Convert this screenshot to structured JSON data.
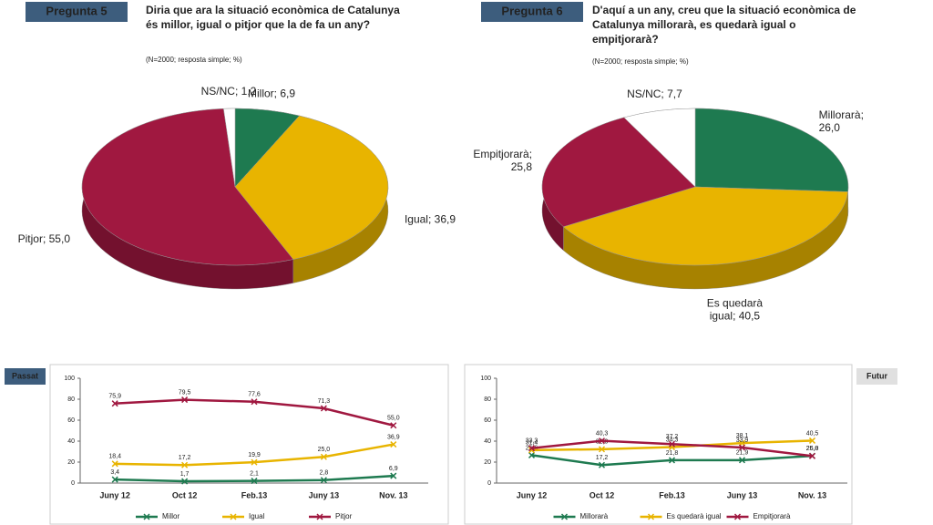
{
  "chart_data": [
    {
      "type": "pie",
      "label": "Pregunta 5",
      "title": [
        "Diria que ara la situació econòmica de Catalunya",
        "és millor, igual o pitjor que la de fa un any?"
      ],
      "subtitle": "(N=2000; resposta simple; %)",
      "values": [
        6.9,
        36.9,
        55.0,
        1.2
      ],
      "value_labels": [
        [
          "Millor; 6,9"
        ],
        [
          "Igual; 36,9"
        ],
        [
          "Pitjor; 55,0"
        ],
        [
          "NS/NC; 1,2"
        ]
      ],
      "colors": [
        "#1e7a50",
        "#e8b400",
        "#a01840",
        "#ffffff"
      ]
    },
    {
      "type": "pie",
      "label": "Pregunta 6",
      "title": [
        "D'aquí a un any, creu que la situació econòmica de",
        "Catalunya millorarà, es quedarà igual o",
        "empitjorarà?"
      ],
      "subtitle": "(N=2000; resposta simple; %)",
      "values": [
        26.0,
        40.5,
        25.8,
        7.7
      ],
      "value_labels": [
        [
          "Millorarà;",
          "26,0"
        ],
        [
          "Es quedarà",
          "igual; 40,5"
        ],
        [
          "Empitjorarà;",
          "25,8"
        ],
        [
          "NS/NC; 7,7"
        ]
      ],
      "colors": [
        "#1e7a50",
        "#e8b400",
        "#a01840",
        "#ffffff"
      ]
    },
    {
      "type": "line",
      "label": "Passat",
      "categories": [
        "Juny 12",
        "Oct 12",
        "Feb.13",
        "Juny 13",
        "Nov. 13"
      ],
      "ylim": [
        0,
        100
      ],
      "yticks": [
        0,
        20,
        40,
        60,
        80,
        100
      ],
      "series": [
        {
          "name": "Millor",
          "color": "#1e7a50",
          "values": [
            3.4,
            1.7,
            2.1,
            2.8,
            6.9
          ],
          "value_labels": [
            "3,4",
            "1,7",
            "2,1",
            "2,8",
            "6,9"
          ]
        },
        {
          "name": "Igual",
          "color": "#e8b400",
          "values": [
            18.4,
            17.2,
            19.9,
            25.0,
            36.9
          ],
          "value_labels": [
            "18,4",
            "17,2",
            "19,9",
            "25,0",
            "36,9"
          ]
        },
        {
          "name": "Pitjor",
          "color": "#a01840",
          "values": [
            75.9,
            79.5,
            77.6,
            71.3,
            55.0
          ],
          "value_labels": [
            "75,9",
            "79,5",
            "77,6",
            "71,3",
            "55,0"
          ]
        }
      ]
    },
    {
      "type": "line",
      "label": "Futur",
      "categories": [
        "Juny 12",
        "Oct 12",
        "Feb.13",
        "Juny 13",
        "Nov. 13"
      ],
      "ylim": [
        0,
        100
      ],
      "yticks": [
        0,
        20,
        40,
        60,
        80,
        100
      ],
      "series": [
        {
          "name": "Millorarà",
          "color": "#1e7a50",
          "values": [
            26.6,
            17.2,
            21.8,
            21.9,
            26.0
          ],
          "value_labels": [
            "26,6",
            "17,2",
            "21,8",
            "21,9",
            "26,0"
          ]
        },
        {
          "name": "Es quedarà igual",
          "color": "#e8b400",
          "values": [
            31.4,
            32.3,
            34.3,
            38.1,
            40.5
          ],
          "value_labels": [
            "31,4",
            "32,3",
            "34,3",
            "38,1",
            "40,5"
          ]
        },
        {
          "name": "Empitjorarà",
          "color": "#a01840",
          "values": [
            33.3,
            40.3,
            37.2,
            33.9,
            25.8
          ],
          "value_labels": [
            "33,3",
            "40,3",
            "37,2",
            "33,9",
            "25,8"
          ]
        }
      ]
    }
  ]
}
